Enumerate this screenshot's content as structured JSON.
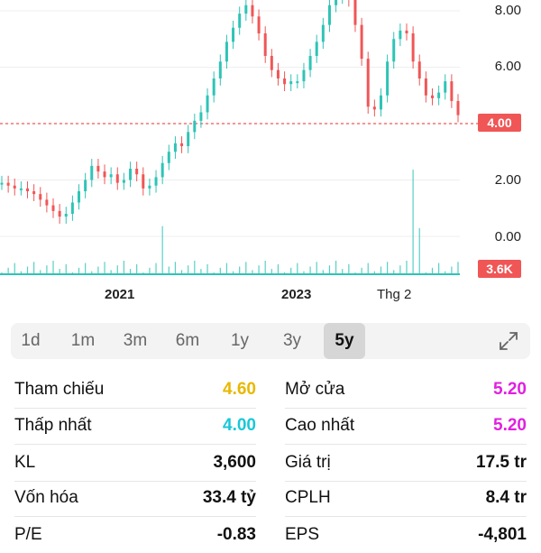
{
  "chart": {
    "y_labels": [
      "8.00",
      "6.00",
      "2.00",
      "0.00"
    ],
    "price_badge": "4.00",
    "volume_badge": "3.6K",
    "x_labels": [
      "2021",
      "2023",
      "Thg 2"
    ],
    "reference_line_value": 4.0,
    "colors": {
      "up": "#2ec4b6",
      "down": "#f05656",
      "badge": "#f05656",
      "volume": "#2ec4b6"
    }
  },
  "chart_data": {
    "type": "line",
    "x_ticks": [
      "2021",
      "2023",
      "Thg 2"
    ],
    "y_ticks": [
      0.0,
      2.0,
      4.0,
      6.0,
      8.0
    ],
    "ylim": [
      -0.5,
      8.5
    ],
    "reference_price": 4.0,
    "latest_volume": "3.6K",
    "grid": true,
    "series": [
      {
        "values": [
          1.9,
          1.8,
          1.7,
          1.7,
          1.6,
          1.5,
          1.3,
          1.1,
          0.9,
          0.7,
          0.8,
          1.2,
          1.6,
          2.0,
          2.5,
          2.3,
          2.1,
          2.2,
          1.9,
          2.0,
          2.4,
          2.2,
          1.7,
          1.8,
          2.1,
          2.6,
          3.0,
          3.3,
          3.2,
          3.7,
          4.1,
          4.4,
          5.0,
          5.6,
          6.2,
          6.9,
          7.4,
          7.9,
          8.2,
          7.8,
          7.2,
          6.4,
          5.9,
          5.6,
          5.4,
          5.5,
          5.5,
          5.9,
          6.4,
          6.9,
          7.5,
          8.2,
          8.5,
          8.5,
          8.4,
          7.5,
          6.3,
          4.6,
          4.5,
          5.0,
          6.2,
          7.0,
          7.3,
          7.2,
          6.2,
          5.6,
          5.0,
          4.9,
          5.1,
          5.5,
          4.8,
          4.3
        ]
      }
    ]
  },
  "range_tabs": [
    "1d",
    "1m",
    "3m",
    "6m",
    "1y",
    "3y",
    "5y"
  ],
  "active_range": "5y",
  "stats": {
    "left": [
      {
        "label": "Tham chiếu",
        "value": "4.60",
        "color": "#e8b800"
      },
      {
        "label": "Thấp nhất",
        "value": "4.00",
        "color": "#19c8d8"
      },
      {
        "label": "KL",
        "value": "3,600",
        "color": "#111111"
      },
      {
        "label": "Vốn hóa",
        "value": "33.4 tỷ",
        "color": "#111111"
      },
      {
        "label": "P/E",
        "value": "-0.83",
        "color": "#111111"
      }
    ],
    "right": [
      {
        "label": "Mở cửa",
        "value": "5.20",
        "color": "#e020e0"
      },
      {
        "label": "Cao nhất",
        "value": "5.20",
        "color": "#e020e0"
      },
      {
        "label": "Giá trị",
        "value": "17.5 tr",
        "color": "#111111"
      },
      {
        "label": "CPLH",
        "value": "8.4 tr",
        "color": "#111111"
      },
      {
        "label": "EPS",
        "value": "-4,801",
        "color": "#111111"
      }
    ]
  }
}
